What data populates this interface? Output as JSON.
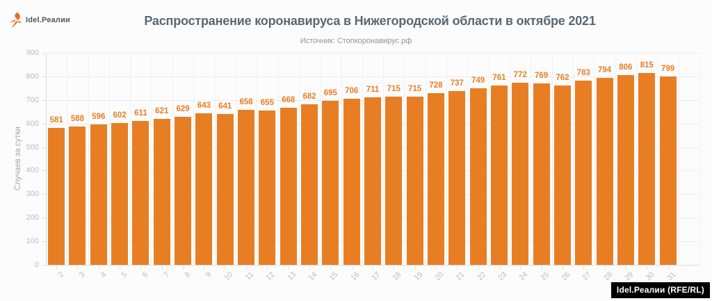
{
  "brand": {
    "logo_text": "Idel.Реалии",
    "logo_icon": "torch-icon",
    "footer_badge": "Idel.Реалии (RFE/RL)"
  },
  "header": {
    "title": "Распространение коронавируса в Нижегородской области в октябре 2021",
    "subtitle": "Источник: Стопкоронавирус.рф"
  },
  "chart_data": {
    "type": "bar",
    "title": "Распространение коронавируса в Нижегородской области в октябре 2021",
    "source": "Источник: Стопкоронавирус.рф",
    "xlabel": "",
    "ylabel": "Случаев за сутки",
    "categories": [
      "2",
      "3",
      "4",
      "5",
      "6",
      "7",
      "8",
      "9",
      "10",
      "11",
      "12",
      "13",
      "14",
      "15",
      "16",
      "17",
      "18",
      "19",
      "20",
      "21",
      "22",
      "23",
      "24",
      "25",
      "26",
      "27",
      "28",
      "29",
      "30",
      "31"
    ],
    "values": [
      581,
      588,
      596,
      602,
      611,
      621,
      629,
      643,
      641,
      658,
      655,
      668,
      682,
      695,
      706,
      711,
      715,
      715,
      728,
      737,
      749,
      761,
      772,
      769,
      762,
      783,
      794,
      806,
      815,
      799
    ],
    "ylim": [
      0,
      900
    ],
    "yticks": [
      0,
      100,
      200,
      300,
      400,
      500,
      600,
      700,
      800,
      900
    ],
    "grid": true,
    "legend": false,
    "value_labels": true,
    "x_label_rotation": -45
  },
  "colors": {
    "bar": "#e87e24",
    "value_label": "#e87e24",
    "accent_orange": "#ed6a1e",
    "title_text": "#5b6770",
    "subtitle_text": "#8e959d",
    "axis_text": "#b9bdc2",
    "grid_line": "#ececec",
    "axis_line": "#d9dcde",
    "badge_bg": "#000000",
    "badge_text": "#ffffff",
    "background": "#fcfcfc"
  }
}
